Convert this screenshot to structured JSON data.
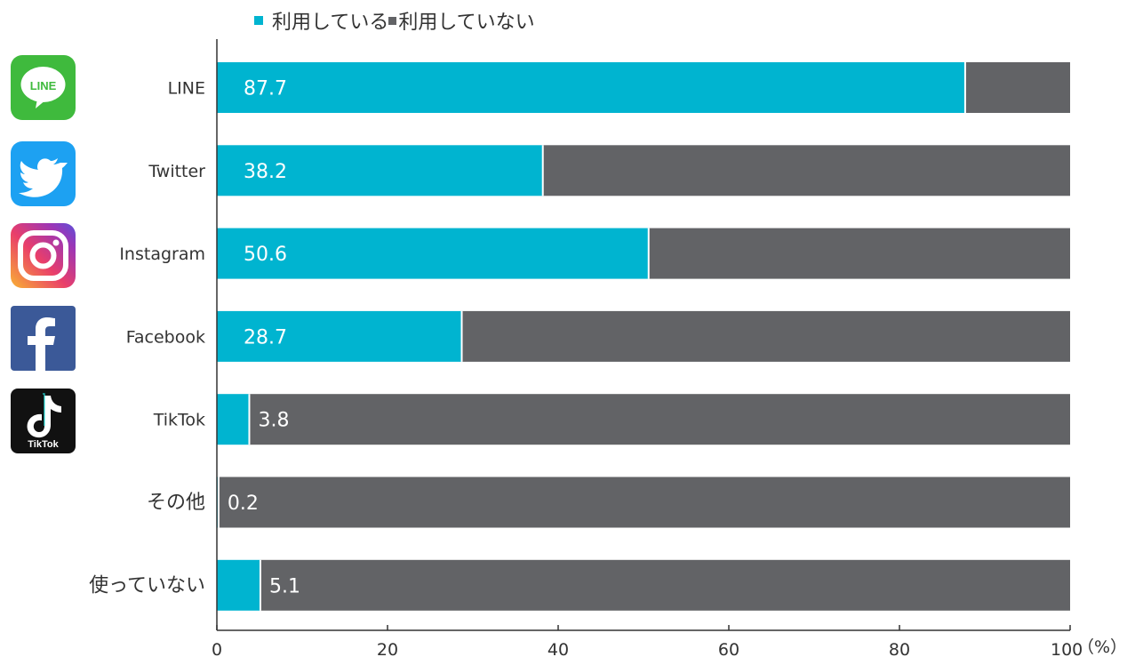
{
  "legend": {
    "used_label": "利用している",
    "not_used_label": "利用していない"
  },
  "unit_label": "（%）",
  "icons": [
    "line-logo-icon",
    "twitter-logo-icon",
    "instagram-logo-icon",
    "facebook-logo-icon",
    "tiktok-logo-icon"
  ],
  "icon_texts": {
    "line": "LINE",
    "tiktok": "TikTok"
  },
  "colors": {
    "used": "#00B4D0",
    "not_used": "#626366",
    "axis": "#333333"
  },
  "chart_data": {
    "type": "bar",
    "orientation": "horizontal",
    "stacked": true,
    "categories": [
      "LINE",
      "Twitter",
      "Instagram",
      "Facebook",
      "TikTok",
      "その他",
      "使っていない"
    ],
    "series": [
      {
        "name": "利用している",
        "values": [
          87.7,
          38.2,
          50.6,
          28.7,
          3.8,
          0.2,
          5.1
        ]
      },
      {
        "name": "利用していない",
        "values": [
          12.3,
          61.8,
          49.4,
          71.3,
          96.2,
          99.8,
          94.9
        ]
      }
    ],
    "data_labels": [
      "87.7",
      "38.2",
      "50.6",
      "28.7",
      "3.8",
      "0.2",
      "5.1"
    ],
    "xlim": [
      0,
      100
    ],
    "xticks": [
      0,
      20,
      40,
      60,
      80,
      100
    ],
    "xlabel": "",
    "ylabel": "",
    "title": "",
    "grid": false,
    "legend_position": "top"
  }
}
